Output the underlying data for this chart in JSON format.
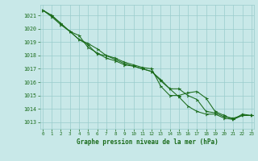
{
  "title": "Graphe pression niveau de la mer (hPa)",
  "background_color": "#c8e8e8",
  "grid_color": "#99cccc",
  "line_color": "#1a6b1a",
  "xlim": [
    -0.3,
    23.3
  ],
  "ylim": [
    1012.5,
    1021.8
  ],
  "xticks": [
    0,
    1,
    2,
    3,
    4,
    5,
    6,
    7,
    8,
    9,
    10,
    11,
    12,
    13,
    14,
    15,
    16,
    17,
    18,
    19,
    20,
    21,
    22,
    23
  ],
  "yticks": [
    1013,
    1014,
    1015,
    1016,
    1017,
    1018,
    1019,
    1020,
    1021
  ],
  "series": [
    [
      1021.4,
      1021.0,
      1020.4,
      1019.8,
      1019.2,
      1018.8,
      1018.1,
      1018.0,
      1017.7,
      1017.4,
      1017.2,
      1017.0,
      1016.8,
      1016.2,
      1015.5,
      1015.5,
      1015.0,
      1014.7,
      1013.8,
      1013.7,
      1013.4,
      1013.3,
      1013.5,
      1013.5
    ],
    [
      1021.4,
      1020.9,
      1020.3,
      1019.8,
      1019.5,
      1018.6,
      1018.2,
      1017.8,
      1017.6,
      1017.3,
      1017.2,
      1017.0,
      1016.8,
      1016.1,
      1015.5,
      1014.9,
      1014.2,
      1013.8,
      1013.6,
      1013.6,
      1013.3,
      1013.2,
      1013.6,
      1013.5
    ],
    [
      1021.4,
      1021.0,
      1020.4,
      1019.8,
      1019.2,
      1018.9,
      1018.5,
      1018.0,
      1017.8,
      1017.5,
      1017.3,
      1017.1,
      1017.0,
      1015.7,
      1015.0,
      1015.0,
      1015.2,
      1015.3,
      1014.8,
      1013.8,
      1013.5,
      1013.2,
      1013.5,
      1013.5
    ]
  ]
}
